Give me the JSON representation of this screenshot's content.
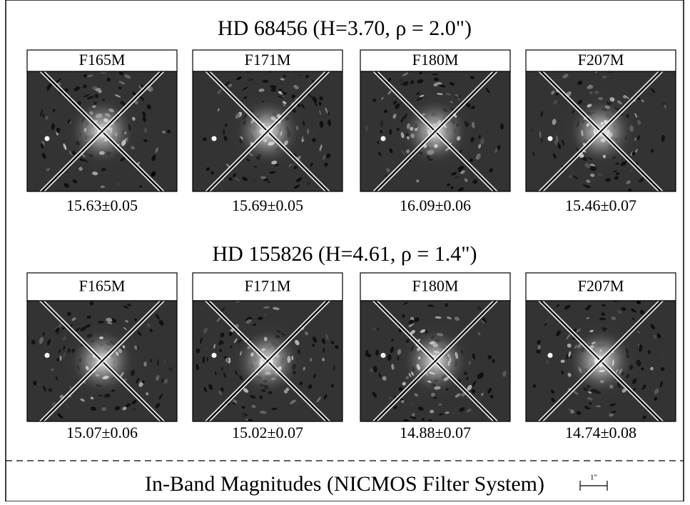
{
  "groups": [
    {
      "title": "HD 68456 (H=3.70, ρ = 2.0\")",
      "panels": [
        {
          "filter": "F165M",
          "magnitude": "15.63±0.05"
        },
        {
          "filter": "F171M",
          "magnitude": "15.69±0.05"
        },
        {
          "filter": "F180M",
          "magnitude": "16.09±0.06"
        },
        {
          "filter": "F207M",
          "magnitude": "15.46±0.07"
        }
      ]
    },
    {
      "title": "HD 155826 (H=4.61, ρ = 1.4\")",
      "panels": [
        {
          "filter": "F165M",
          "magnitude": "15.07±0.06"
        },
        {
          "filter": "F171M",
          "magnitude": "15.02±0.07"
        },
        {
          "filter": "F180M",
          "magnitude": "14.88±0.07"
        },
        {
          "filter": "F207M",
          "magnitude": "14.74±0.08"
        }
      ]
    }
  ],
  "footer": {
    "caption": "In-Band Magnitudes (NICMOS Filter System)",
    "scale_label": "1\""
  }
}
